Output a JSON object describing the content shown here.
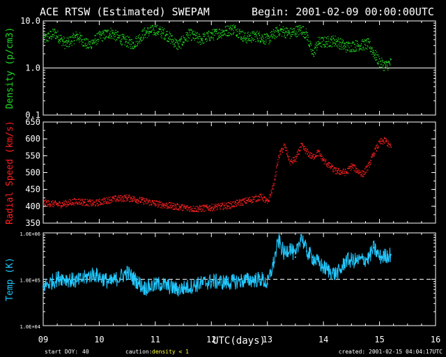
{
  "header": {
    "title": "ACE RTSW (Estimated) SWEPAM",
    "begin": "Begin: 2001-02-09 00:00:00UTC"
  },
  "footer": {
    "start_doy_label": "start DOY:",
    "start_doy_value": "40",
    "caution_label": "caution:",
    "caution_value": "density < 1",
    "created": "created: 2001-02-15 04:04:17UTC"
  },
  "colors": {
    "density": "#22dd22",
    "speed": "#ff2020",
    "temp": "#22c8ff",
    "axes": "#ffffff",
    "caution": "#ffff33"
  },
  "chart_data": {
    "type": "scatter",
    "xlabel": "UTC(days)",
    "xlim": [
      9,
      16
    ],
    "x_ticks": [
      "09",
      "10",
      "11",
      "12",
      "13",
      "14",
      "15",
      "16"
    ],
    "panels": [
      {
        "name": "density",
        "ylabel": "Density (p/cm3)",
        "yscale": "log",
        "ylim": [
          0.1,
          10
        ],
        "ytick_labels": [
          "10.0",
          "1.0",
          "0.1"
        ],
        "ytick_values": [
          10,
          1,
          0.1
        ],
        "reference_line": 1.0,
        "reference_style": "solid",
        "series_points": [
          [
            9.0,
            4.0
          ],
          [
            9.2,
            5.5
          ],
          [
            9.4,
            3.2
          ],
          [
            9.6,
            4.8
          ],
          [
            9.8,
            3.0
          ],
          [
            10.0,
            4.6
          ],
          [
            10.2,
            5.6
          ],
          [
            10.4,
            4.0
          ],
          [
            10.6,
            3.2
          ],
          [
            10.8,
            5.5
          ],
          [
            11.0,
            6.5
          ],
          [
            11.2,
            5.0
          ],
          [
            11.4,
            3.0
          ],
          [
            11.6,
            5.2
          ],
          [
            11.8,
            4.0
          ],
          [
            12.0,
            5.0
          ],
          [
            12.2,
            5.8
          ],
          [
            12.4,
            6.8
          ],
          [
            12.6,
            4.3
          ],
          [
            12.8,
            4.8
          ],
          [
            13.0,
            4.0
          ],
          [
            13.2,
            6.3
          ],
          [
            13.4,
            5.4
          ],
          [
            13.6,
            6.6
          ],
          [
            13.7,
            5.0
          ],
          [
            13.8,
            1.9
          ],
          [
            13.9,
            3.5
          ],
          [
            14.0,
            3.5
          ],
          [
            14.2,
            3.8
          ],
          [
            14.4,
            2.8
          ],
          [
            14.6,
            3.0
          ],
          [
            14.8,
            3.2
          ],
          [
            14.9,
            2.0
          ],
          [
            15.0,
            1.3
          ],
          [
            15.1,
            1.1
          ],
          [
            15.2,
            1.3
          ]
        ]
      },
      {
        "name": "speed",
        "ylabel": "Radial Speed (km/s)",
        "yscale": "linear",
        "ylim": [
          350,
          650
        ],
        "ytick_labels": [
          "650",
          "600",
          "550",
          "500",
          "450",
          "400",
          "350"
        ],
        "ytick_values": [
          650,
          600,
          550,
          500,
          450,
          400,
          350
        ],
        "series_points": [
          [
            9.0,
            410
          ],
          [
            9.3,
            405
          ],
          [
            9.6,
            415
          ],
          [
            9.9,
            408
          ],
          [
            10.2,
            420
          ],
          [
            10.5,
            425
          ],
          [
            10.8,
            415
          ],
          [
            11.1,
            405
          ],
          [
            11.4,
            398
          ],
          [
            11.7,
            392
          ],
          [
            12.0,
            396
          ],
          [
            12.3,
            402
          ],
          [
            12.6,
            415
          ],
          [
            12.9,
            428
          ],
          [
            13.0,
            410
          ],
          [
            13.1,
            460
          ],
          [
            13.2,
            550
          ],
          [
            13.3,
            580
          ],
          [
            13.4,
            530
          ],
          [
            13.5,
            540
          ],
          [
            13.6,
            580
          ],
          [
            13.7,
            560
          ],
          [
            13.8,
            545
          ],
          [
            13.9,
            560
          ],
          [
            14.0,
            535
          ],
          [
            14.2,
            505
          ],
          [
            14.4,
            500
          ],
          [
            14.5,
            520
          ],
          [
            14.6,
            505
          ],
          [
            14.7,
            495
          ],
          [
            14.8,
            520
          ],
          [
            14.9,
            560
          ],
          [
            15.0,
            590
          ],
          [
            15.1,
            595
          ],
          [
            15.2,
            575
          ]
        ]
      },
      {
        "name": "temp",
        "ylabel": "Temp (K)",
        "yscale": "log",
        "ylim": [
          10000,
          1000000
        ],
        "ytick_labels": [
          "1.0E+06",
          "1.0E+05",
          "1.0E+04"
        ],
        "ytick_values": [
          1000000,
          100000,
          10000
        ],
        "reference_line": 100000,
        "reference_style": "dashed",
        "series_points": [
          [
            9.0,
            70000
          ],
          [
            9.3,
            110000
          ],
          [
            9.6,
            90000
          ],
          [
            9.9,
            130000
          ],
          [
            10.2,
            85000
          ],
          [
            10.5,
            140000
          ],
          [
            10.8,
            65000
          ],
          [
            11.1,
            80000
          ],
          [
            11.4,
            60000
          ],
          [
            11.7,
            75000
          ],
          [
            12.0,
            90000
          ],
          [
            12.3,
            85000
          ],
          [
            12.6,
            95000
          ],
          [
            12.9,
            100000
          ],
          [
            13.0,
            80000
          ],
          [
            13.1,
            200000
          ],
          [
            13.2,
            700000
          ],
          [
            13.3,
            350000
          ],
          [
            13.4,
            500000
          ],
          [
            13.5,
            300000
          ],
          [
            13.6,
            900000
          ],
          [
            13.7,
            400000
          ],
          [
            13.8,
            300000
          ],
          [
            14.0,
            180000
          ],
          [
            14.2,
            130000
          ],
          [
            14.3,
            150000
          ],
          [
            14.4,
            260000
          ],
          [
            14.6,
            250000
          ],
          [
            14.8,
            280000
          ],
          [
            14.9,
            480000
          ],
          [
            15.0,
            300000
          ],
          [
            15.2,
            340000
          ]
        ]
      }
    ]
  }
}
